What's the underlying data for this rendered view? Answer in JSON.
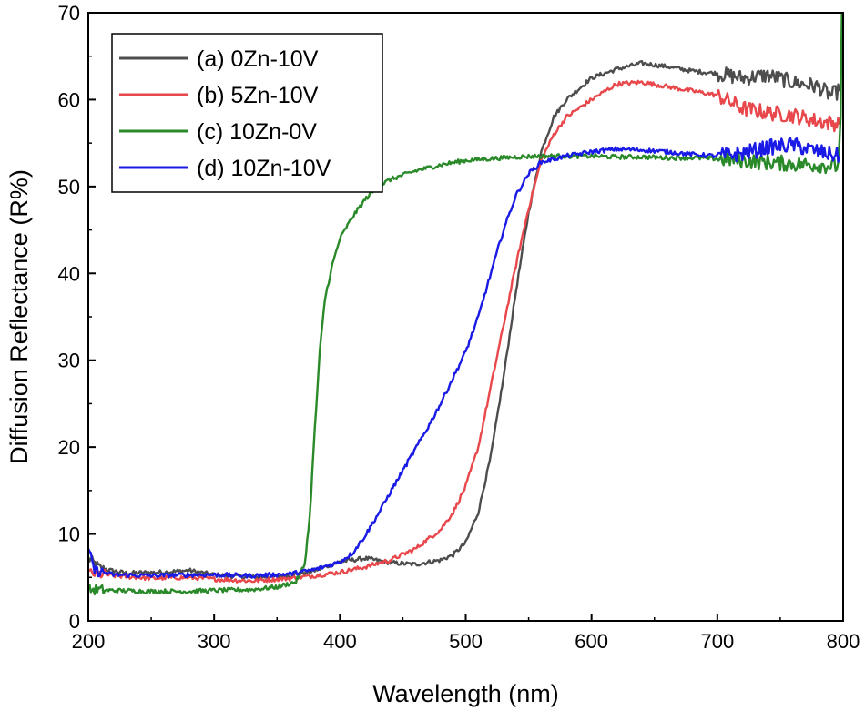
{
  "chart_data": {
    "type": "line",
    "title": "",
    "xlabel": "Wavelength (nm)",
    "ylabel": "Diffusion Reflectance (R%)",
    "xlim": [
      200,
      800
    ],
    "ylim": [
      0,
      70
    ],
    "x_ticks": [
      200,
      300,
      400,
      500,
      600,
      700,
      800
    ],
    "y_ticks": [
      0,
      10,
      20,
      30,
      40,
      50,
      60,
      70
    ],
    "grid": false,
    "legend_position": "top-left",
    "series": [
      {
        "name": "(a) 0Zn-10V",
        "color": "#4d4d4d",
        "points": [
          [
            200,
            7.2
          ],
          [
            210,
            6.0
          ],
          [
            230,
            5.5
          ],
          [
            260,
            5.6
          ],
          [
            280,
            5.8
          ],
          [
            300,
            5.3
          ],
          [
            330,
            5.0
          ],
          [
            360,
            5.2
          ],
          [
            380,
            5.8
          ],
          [
            400,
            6.8
          ],
          [
            420,
            7.2
          ],
          [
            440,
            6.7
          ],
          [
            460,
            6.5
          ],
          [
            480,
            7.0
          ],
          [
            490,
            7.6
          ],
          [
            500,
            9.0
          ],
          [
            510,
            12.5
          ],
          [
            520,
            19.0
          ],
          [
            530,
            28.0
          ],
          [
            540,
            38.0
          ],
          [
            550,
            47.0
          ],
          [
            560,
            54.0
          ],
          [
            570,
            58.0
          ],
          [
            580,
            60.0
          ],
          [
            600,
            62.5
          ],
          [
            620,
            63.5
          ],
          [
            640,
            64.2
          ],
          [
            660,
            63.8
          ],
          [
            680,
            63.3
          ],
          [
            700,
            63.0
          ],
          [
            720,
            62.5
          ],
          [
            740,
            62.8
          ],
          [
            760,
            62.0
          ],
          [
            780,
            61.5
          ],
          [
            790,
            60.5
          ],
          [
            797,
            61.0
          ]
        ]
      },
      {
        "name": "(b) 5Zn-10V",
        "color": "#e8474b",
        "points": [
          [
            200,
            5.5
          ],
          [
            220,
            5.2
          ],
          [
            250,
            4.9
          ],
          [
            280,
            5.0
          ],
          [
            300,
            4.8
          ],
          [
            330,
            4.6
          ],
          [
            360,
            4.9
          ],
          [
            380,
            5.2
          ],
          [
            400,
            5.6
          ],
          [
            420,
            6.2
          ],
          [
            440,
            7.0
          ],
          [
            460,
            8.3
          ],
          [
            480,
            10.5
          ],
          [
            490,
            12.5
          ],
          [
            500,
            15.5
          ],
          [
            510,
            20.0
          ],
          [
            520,
            27.0
          ],
          [
            530,
            34.0
          ],
          [
            540,
            41.0
          ],
          [
            550,
            47.5
          ],
          [
            560,
            53.0
          ],
          [
            570,
            56.0
          ],
          [
            580,
            58.0
          ],
          [
            600,
            60.0
          ],
          [
            620,
            61.8
          ],
          [
            640,
            62.0
          ],
          [
            660,
            61.5
          ],
          [
            680,
            61.0
          ],
          [
            700,
            60.5
          ],
          [
            720,
            59.0
          ],
          [
            740,
            58.5
          ],
          [
            760,
            58.2
          ],
          [
            780,
            57.5
          ],
          [
            797,
            57.2
          ]
        ]
      },
      {
        "name": "(c) 10Zn-0V",
        "color": "#2a8a2a",
        "points": [
          [
            200,
            3.6
          ],
          [
            220,
            3.5
          ],
          [
            250,
            3.4
          ],
          [
            280,
            3.4
          ],
          [
            300,
            3.5
          ],
          [
            330,
            3.6
          ],
          [
            350,
            3.9
          ],
          [
            365,
            4.5
          ],
          [
            372,
            6.5
          ],
          [
            376,
            12.0
          ],
          [
            380,
            22.0
          ],
          [
            384,
            31.0
          ],
          [
            388,
            37.0
          ],
          [
            394,
            41.0
          ],
          [
            400,
            44.0
          ],
          [
            410,
            46.5
          ],
          [
            420,
            48.5
          ],
          [
            430,
            50.0
          ],
          [
            440,
            50.8
          ],
          [
            460,
            51.8
          ],
          [
            480,
            52.5
          ],
          [
            500,
            53.0
          ],
          [
            520,
            53.2
          ],
          [
            540,
            53.4
          ],
          [
            560,
            53.5
          ],
          [
            580,
            53.5
          ],
          [
            600,
            53.5
          ],
          [
            620,
            53.4
          ],
          [
            640,
            53.4
          ],
          [
            660,
            53.3
          ],
          [
            680,
            53.3
          ],
          [
            700,
            53.2
          ],
          [
            720,
            53.0
          ],
          [
            740,
            52.8
          ],
          [
            760,
            52.6
          ],
          [
            780,
            52.5
          ],
          [
            796,
            52.3
          ],
          [
            798,
            58.0
          ],
          [
            799,
            70.0
          ]
        ]
      },
      {
        "name": "(d) 10Zn-10V",
        "color": "#1a1ae6",
        "points": [
          [
            200,
            8.2
          ],
          [
            205,
            5.8
          ],
          [
            220,
            5.3
          ],
          [
            250,
            5.2
          ],
          [
            280,
            5.3
          ],
          [
            300,
            5.3
          ],
          [
            330,
            5.2
          ],
          [
            360,
            5.4
          ],
          [
            380,
            5.9
          ],
          [
            400,
            6.8
          ],
          [
            410,
            7.8
          ],
          [
            420,
            9.8
          ],
          [
            430,
            12.2
          ],
          [
            440,
            14.8
          ],
          [
            450,
            17.3
          ],
          [
            460,
            19.8
          ],
          [
            470,
            22.3
          ],
          [
            480,
            25.0
          ],
          [
            490,
            28.0
          ],
          [
            500,
            31.0
          ],
          [
            510,
            35.0
          ],
          [
            520,
            40.0
          ],
          [
            530,
            45.0
          ],
          [
            540,
            49.0
          ],
          [
            550,
            51.5
          ],
          [
            560,
            52.8
          ],
          [
            580,
            53.5
          ],
          [
            600,
            54.0
          ],
          [
            620,
            54.3
          ],
          [
            640,
            54.2
          ],
          [
            660,
            54.0
          ],
          [
            680,
            53.7
          ],
          [
            700,
            53.5
          ],
          [
            720,
            53.8
          ],
          [
            740,
            54.5
          ],
          [
            760,
            54.8
          ],
          [
            780,
            54.0
          ],
          [
            797,
            53.5
          ]
        ]
      }
    ]
  }
}
